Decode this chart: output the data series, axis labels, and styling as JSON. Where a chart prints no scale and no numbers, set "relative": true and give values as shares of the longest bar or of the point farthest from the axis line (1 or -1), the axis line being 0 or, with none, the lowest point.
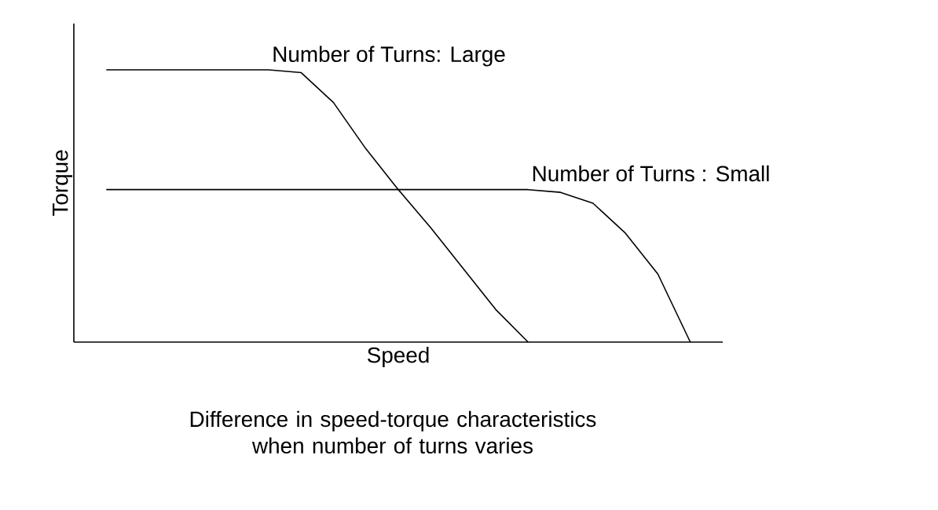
{
  "chart_data": {
    "type": "line",
    "relative": true,
    "xlabel": "Speed",
    "ylabel": "Torque",
    "annotations": [
      "Difference in speed-torque characteristics when number of turns varies"
    ],
    "categories": [
      null,
      null,
      null,
      null,
      null,
      null,
      null,
      null,
      null,
      null,
      null,
      null,
      null,
      null,
      null,
      null,
      null,
      null,
      null,
      null,
      null
    ],
    "series": [
      {
        "name": "Number of Turns: Large",
        "color": "#000000",
        "values": [
          null,
          1,
          1,
          1,
          1,
          1,
          1,
          0.99,
          0.88,
          0.71,
          0.56,
          0.42,
          0.27,
          0.12,
          0,
          null,
          null,
          null,
          null,
          null,
          null
        ]
      },
      {
        "name": "Number of Turns : Small",
        "color": "#000000",
        "values": [
          null,
          0.56,
          0.56,
          0.56,
          0.56,
          0.56,
          0.56,
          0.56,
          0.56,
          0.56,
          0.56,
          0.56,
          0.56,
          0.56,
          0.56,
          0.55,
          0.51,
          0.4,
          0.25,
          0,
          null
        ]
      }
    ]
  }
}
